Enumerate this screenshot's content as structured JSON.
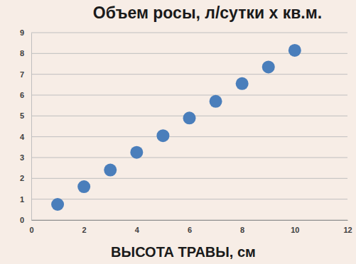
{
  "chart_data": {
    "type": "scatter",
    "title": "Объем росы, л/сутки х кв.м.",
    "x_label": "ВЫСОТА ТРАВЫ, см",
    "x": [
      1,
      2,
      3,
      4,
      5,
      6,
      7,
      8,
      9,
      10
    ],
    "values": [
      0.75,
      1.6,
      2.4,
      3.25,
      4.05,
      4.9,
      5.7,
      6.55,
      7.35,
      8.15
    ],
    "color": "#4a7ebb",
    "marker": "circle",
    "xlim": [
      0,
      12
    ],
    "xticks": [
      0,
      2,
      4,
      6,
      8,
      10,
      12
    ],
    "ylim": [
      0,
      9
    ],
    "yticks": [
      0,
      1,
      2,
      3,
      4,
      5,
      6,
      7,
      8,
      9
    ],
    "grid": true
  }
}
